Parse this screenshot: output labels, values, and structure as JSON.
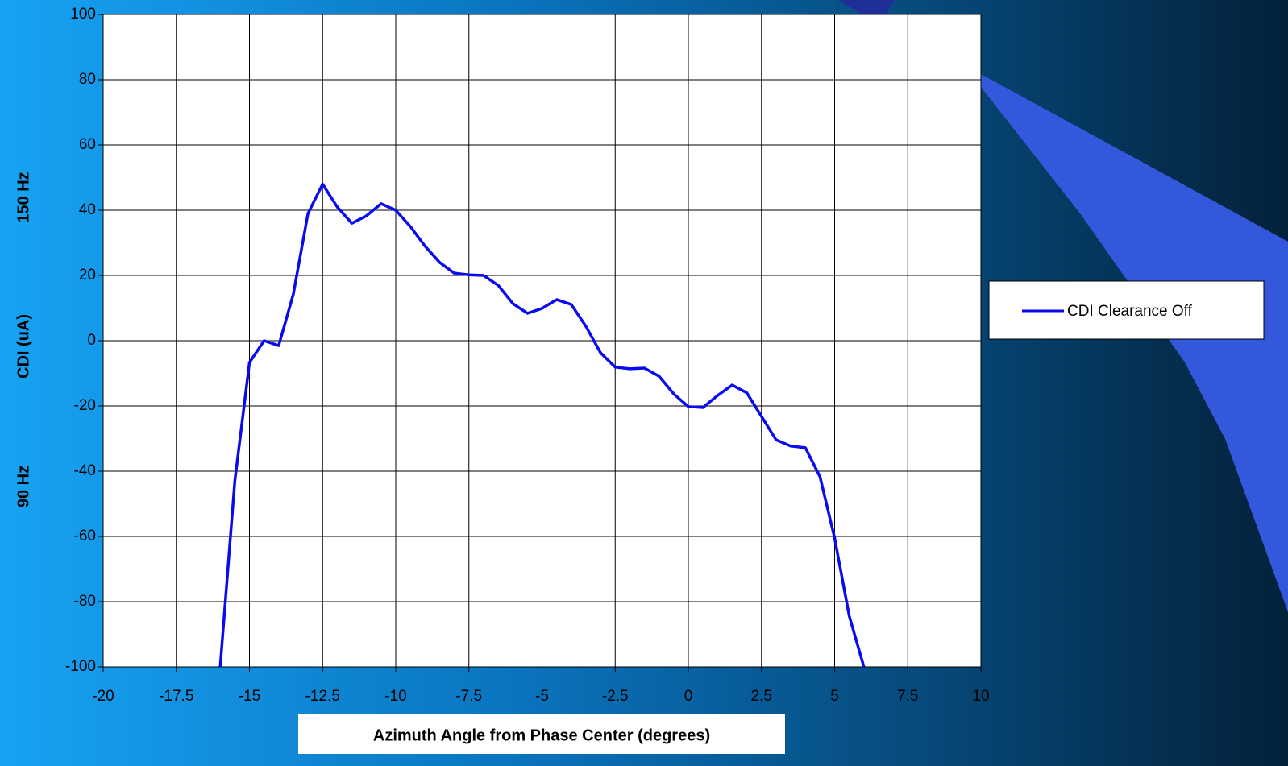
{
  "chart_data": {
    "type": "line",
    "x_label": "Azimuth Angle from Phase Center (degrees)",
    "y_axis_labels": [
      "150 Hz",
      "CDI (uA)",
      "90 Hz"
    ],
    "x": [
      -16,
      -15.5,
      -15,
      -14.5,
      -14,
      -13.5,
      -13,
      -12.5,
      -12,
      -11.5,
      -11,
      -10.5,
      -10,
      -9.5,
      -9,
      -8.5,
      -8,
      -7.5,
      -7,
      -6.5,
      -6,
      -5.5,
      -5,
      -4.5,
      -4,
      -3.5,
      -3,
      -2.5,
      -2,
      -1.5,
      -1,
      -0.5,
      0,
      0.5,
      1,
      1.5,
      2,
      2.5,
      3,
      3.5,
      4,
      4.5,
      5,
      5.5,
      6
    ],
    "series": [
      {
        "name": "CDI Clearance Off",
        "color": "#0a0af0",
        "values": [
          -100,
          -43,
          -6.7,
          0,
          -1.5,
          14.3,
          39,
          48,
          41,
          36,
          38.3,
          42,
          40,
          35,
          29,
          24,
          20.7,
          20.2,
          20,
          17,
          11.4,
          8.4,
          9.9,
          12.6,
          11.1,
          4.4,
          -3.7,
          -8.1,
          -8.6,
          -8.4,
          -10.9,
          -16.3,
          -20.2,
          -20.5,
          -16.8,
          -13.6,
          -16,
          -23.2,
          -30.4,
          -32.3,
          -32.8,
          -41.7,
          -60.5,
          -84.4,
          -100
        ]
      }
    ],
    "xlim": [
      -20,
      10
    ],
    "xticks": [
      -20,
      -17.5,
      -15,
      -12.5,
      -10,
      -7.5,
      -5,
      -2.5,
      0,
      2.5,
      5,
      7.5,
      10
    ],
    "ylim": [
      -100,
      100
    ],
    "yticks": [
      -100,
      -80,
      -60,
      -40,
      -20,
      0,
      20,
      40,
      60,
      80,
      100
    ],
    "grid": true
  }
}
